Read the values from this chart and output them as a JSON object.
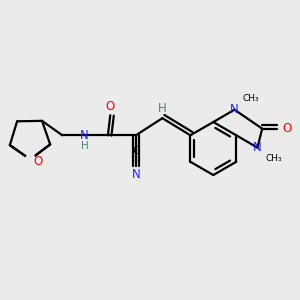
{
  "background_color": "#ebebeb",
  "atom_colors": {
    "C": "#000000",
    "N": "#2020ff",
    "O": "#ff0000",
    "H": "#508080"
  },
  "bond_color": "#000000",
  "line_width": 1.6,
  "figsize": [
    3.0,
    3.0
  ],
  "dpi": 100,
  "xlim": [
    0,
    10
  ],
  "ylim": [
    0,
    10
  ]
}
